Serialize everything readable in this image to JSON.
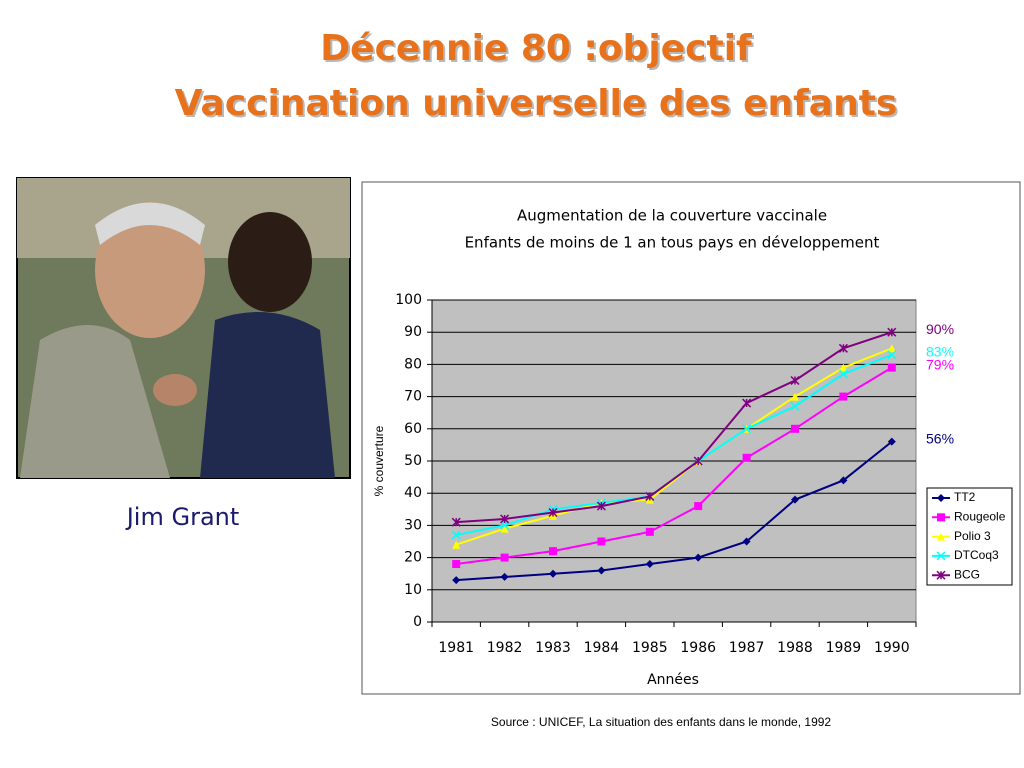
{
  "slide": {
    "title_line1": "Décennie 80 :objectif",
    "title_line2": "Vaccination universelle des enfants",
    "photo_caption": "Jim Grant",
    "source": "Source : UNICEF, La situation des enfants dans le monde, 1992"
  },
  "chart_data": {
    "type": "line",
    "title": "Augmentation de la couverture vaccinale",
    "subtitle": "Enfants de moins de 1 an tous pays en développement",
    "x_label": "Années",
    "y_label": "% couverture",
    "categories": [
      "1981",
      "1982",
      "1983",
      "1984",
      "1985",
      "1986",
      "1987",
      "1988",
      "1989",
      "1990"
    ],
    "ylim": [
      0,
      100
    ],
    "yticks": [
      0,
      10,
      20,
      30,
      40,
      50,
      60,
      70,
      80,
      90,
      100
    ],
    "grid": true,
    "legend": "right",
    "series": [
      {
        "name": "TT2",
        "color": "#000080",
        "marker": "diamond",
        "values": [
          13,
          14,
          15,
          16,
          18,
          20,
          25,
          38,
          44,
          56
        ],
        "value_labels": [
          null,
          null,
          null,
          null,
          null,
          null,
          null,
          null,
          null,
          "56%"
        ]
      },
      {
        "name": "Rougeole",
        "color": "#ff00ff",
        "marker": "square",
        "values": [
          18,
          20,
          22,
          25,
          28,
          36,
          51,
          60,
          70,
          79
        ],
        "value_labels": [
          null,
          null,
          null,
          null,
          null,
          null,
          null,
          null,
          null,
          "79%"
        ]
      },
      {
        "name": "Polio 3",
        "color": "#ffff00",
        "marker": "triangle",
        "values": [
          24,
          29,
          33,
          37,
          38,
          50,
          60,
          70,
          79,
          85
        ]
      },
      {
        "name": "DTCoq3",
        "color": "#00ffff",
        "marker": "x",
        "values": [
          27,
          30,
          35,
          37,
          39,
          50,
          60,
          67,
          77,
          83
        ],
        "value_labels": [
          null,
          null,
          null,
          null,
          null,
          null,
          null,
          null,
          null,
          "83%"
        ]
      },
      {
        "name": "BCG",
        "color": "#800080",
        "marker": "star",
        "values": [
          31,
          32,
          34,
          36,
          39,
          50,
          68,
          75,
          85,
          90
        ],
        "value_labels": [
          null,
          null,
          null,
          null,
          null,
          null,
          null,
          null,
          null,
          "90%"
        ]
      }
    ]
  }
}
